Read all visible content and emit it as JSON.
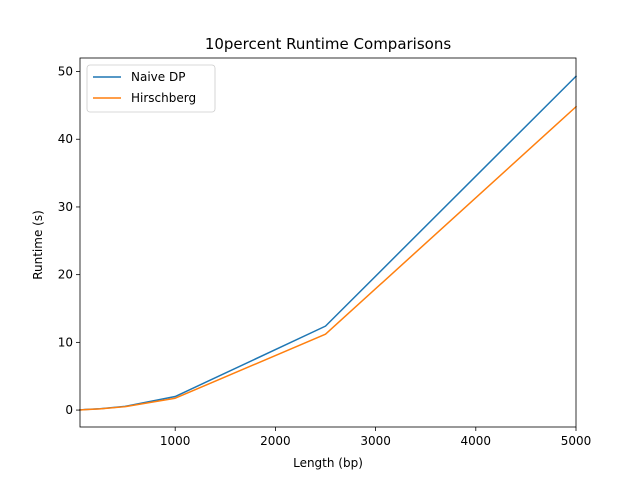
{
  "chart_data": {
    "type": "line",
    "title": "10percent Runtime Comparisons",
    "xlabel": "Length (bp)",
    "ylabel": "Runtime (s)",
    "xlim": [
      50,
      5000
    ],
    "ylim": [
      -2.5,
      52
    ],
    "x_ticks": [
      1000,
      2000,
      3000,
      4000,
      5000
    ],
    "y_ticks": [
      0,
      10,
      20,
      30,
      40,
      50
    ],
    "x_tick_labels": [
      "1000",
      "2000",
      "3000",
      "4000",
      "5000"
    ],
    "y_tick_labels": [
      "0",
      "10",
      "20",
      "30",
      "40",
      "50"
    ],
    "grid": false,
    "legend_position": "top-left",
    "series": [
      {
        "name": "Naive DP",
        "color": "#1f77b4",
        "x": [
          50,
          100,
          250,
          500,
          1000,
          2500,
          5000
        ],
        "y": [
          0.02,
          0.08,
          0.2,
          0.55,
          2.0,
          12.4,
          49.3
        ]
      },
      {
        "name": "Hirschberg",
        "color": "#ff7f0e",
        "x": [
          50,
          100,
          250,
          500,
          1000,
          2500,
          5000
        ],
        "y": [
          0.02,
          0.07,
          0.18,
          0.5,
          1.75,
          11.2,
          44.8
        ]
      }
    ]
  }
}
